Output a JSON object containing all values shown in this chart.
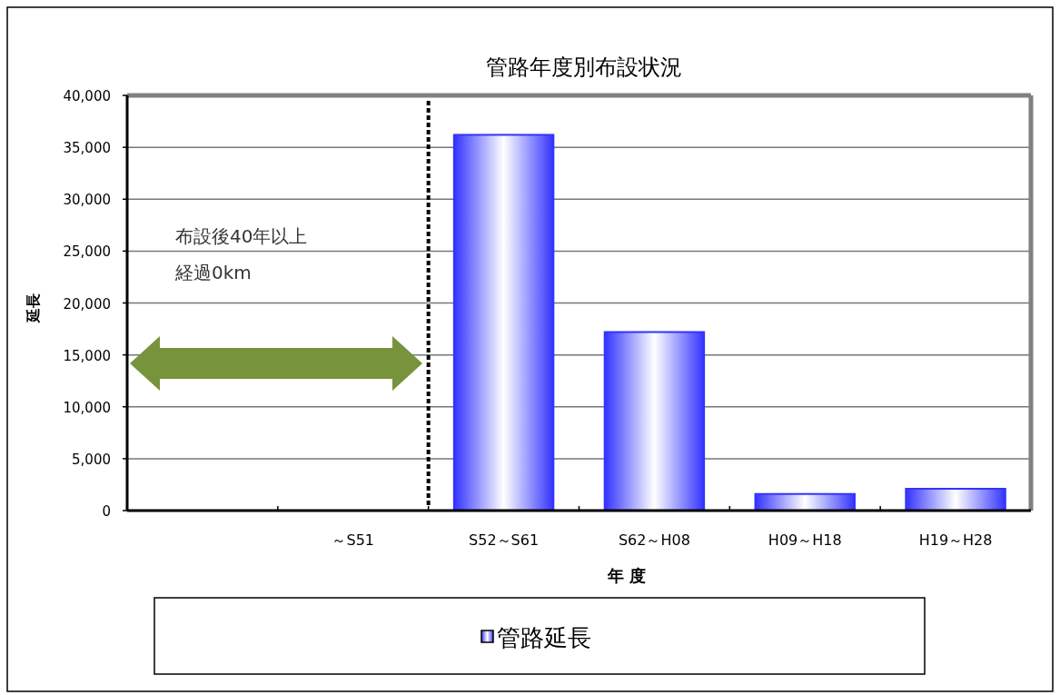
{
  "chart_data": {
    "type": "bar",
    "title": "管路年度別布設状況",
    "xlabel": "年 度",
    "ylabel": "延長",
    "categories": [
      null,
      "～S51",
      "S52～S61",
      "S62～H08",
      "H09～H18",
      "H19～H28"
    ],
    "series": [
      {
        "name": "管路延長",
        "color": "#3333ff",
        "values": [
          0,
          0,
          36200,
          17200,
          1600,
          2100
        ]
      }
    ],
    "ylim": [
      0,
      40000
    ],
    "yticks": [
      {
        "value": 0,
        "label": "0"
      },
      {
        "value": 5000,
        "label": "5,000"
      },
      {
        "value": 10000,
        "label": "10,000"
      },
      {
        "value": 15000,
        "label": "15,000"
      },
      {
        "value": 20000,
        "label": "20,000"
      },
      {
        "value": 25000,
        "label": "25,000"
      },
      {
        "value": 30000,
        "label": "30,000"
      },
      {
        "value": 35000,
        "label": "35,000"
      },
      {
        "value": 40000,
        "label": "40,000"
      }
    ],
    "annotations": [
      "布設後40年以上",
      "経過0km"
    ],
    "grid": "y",
    "legend": "bottom"
  }
}
